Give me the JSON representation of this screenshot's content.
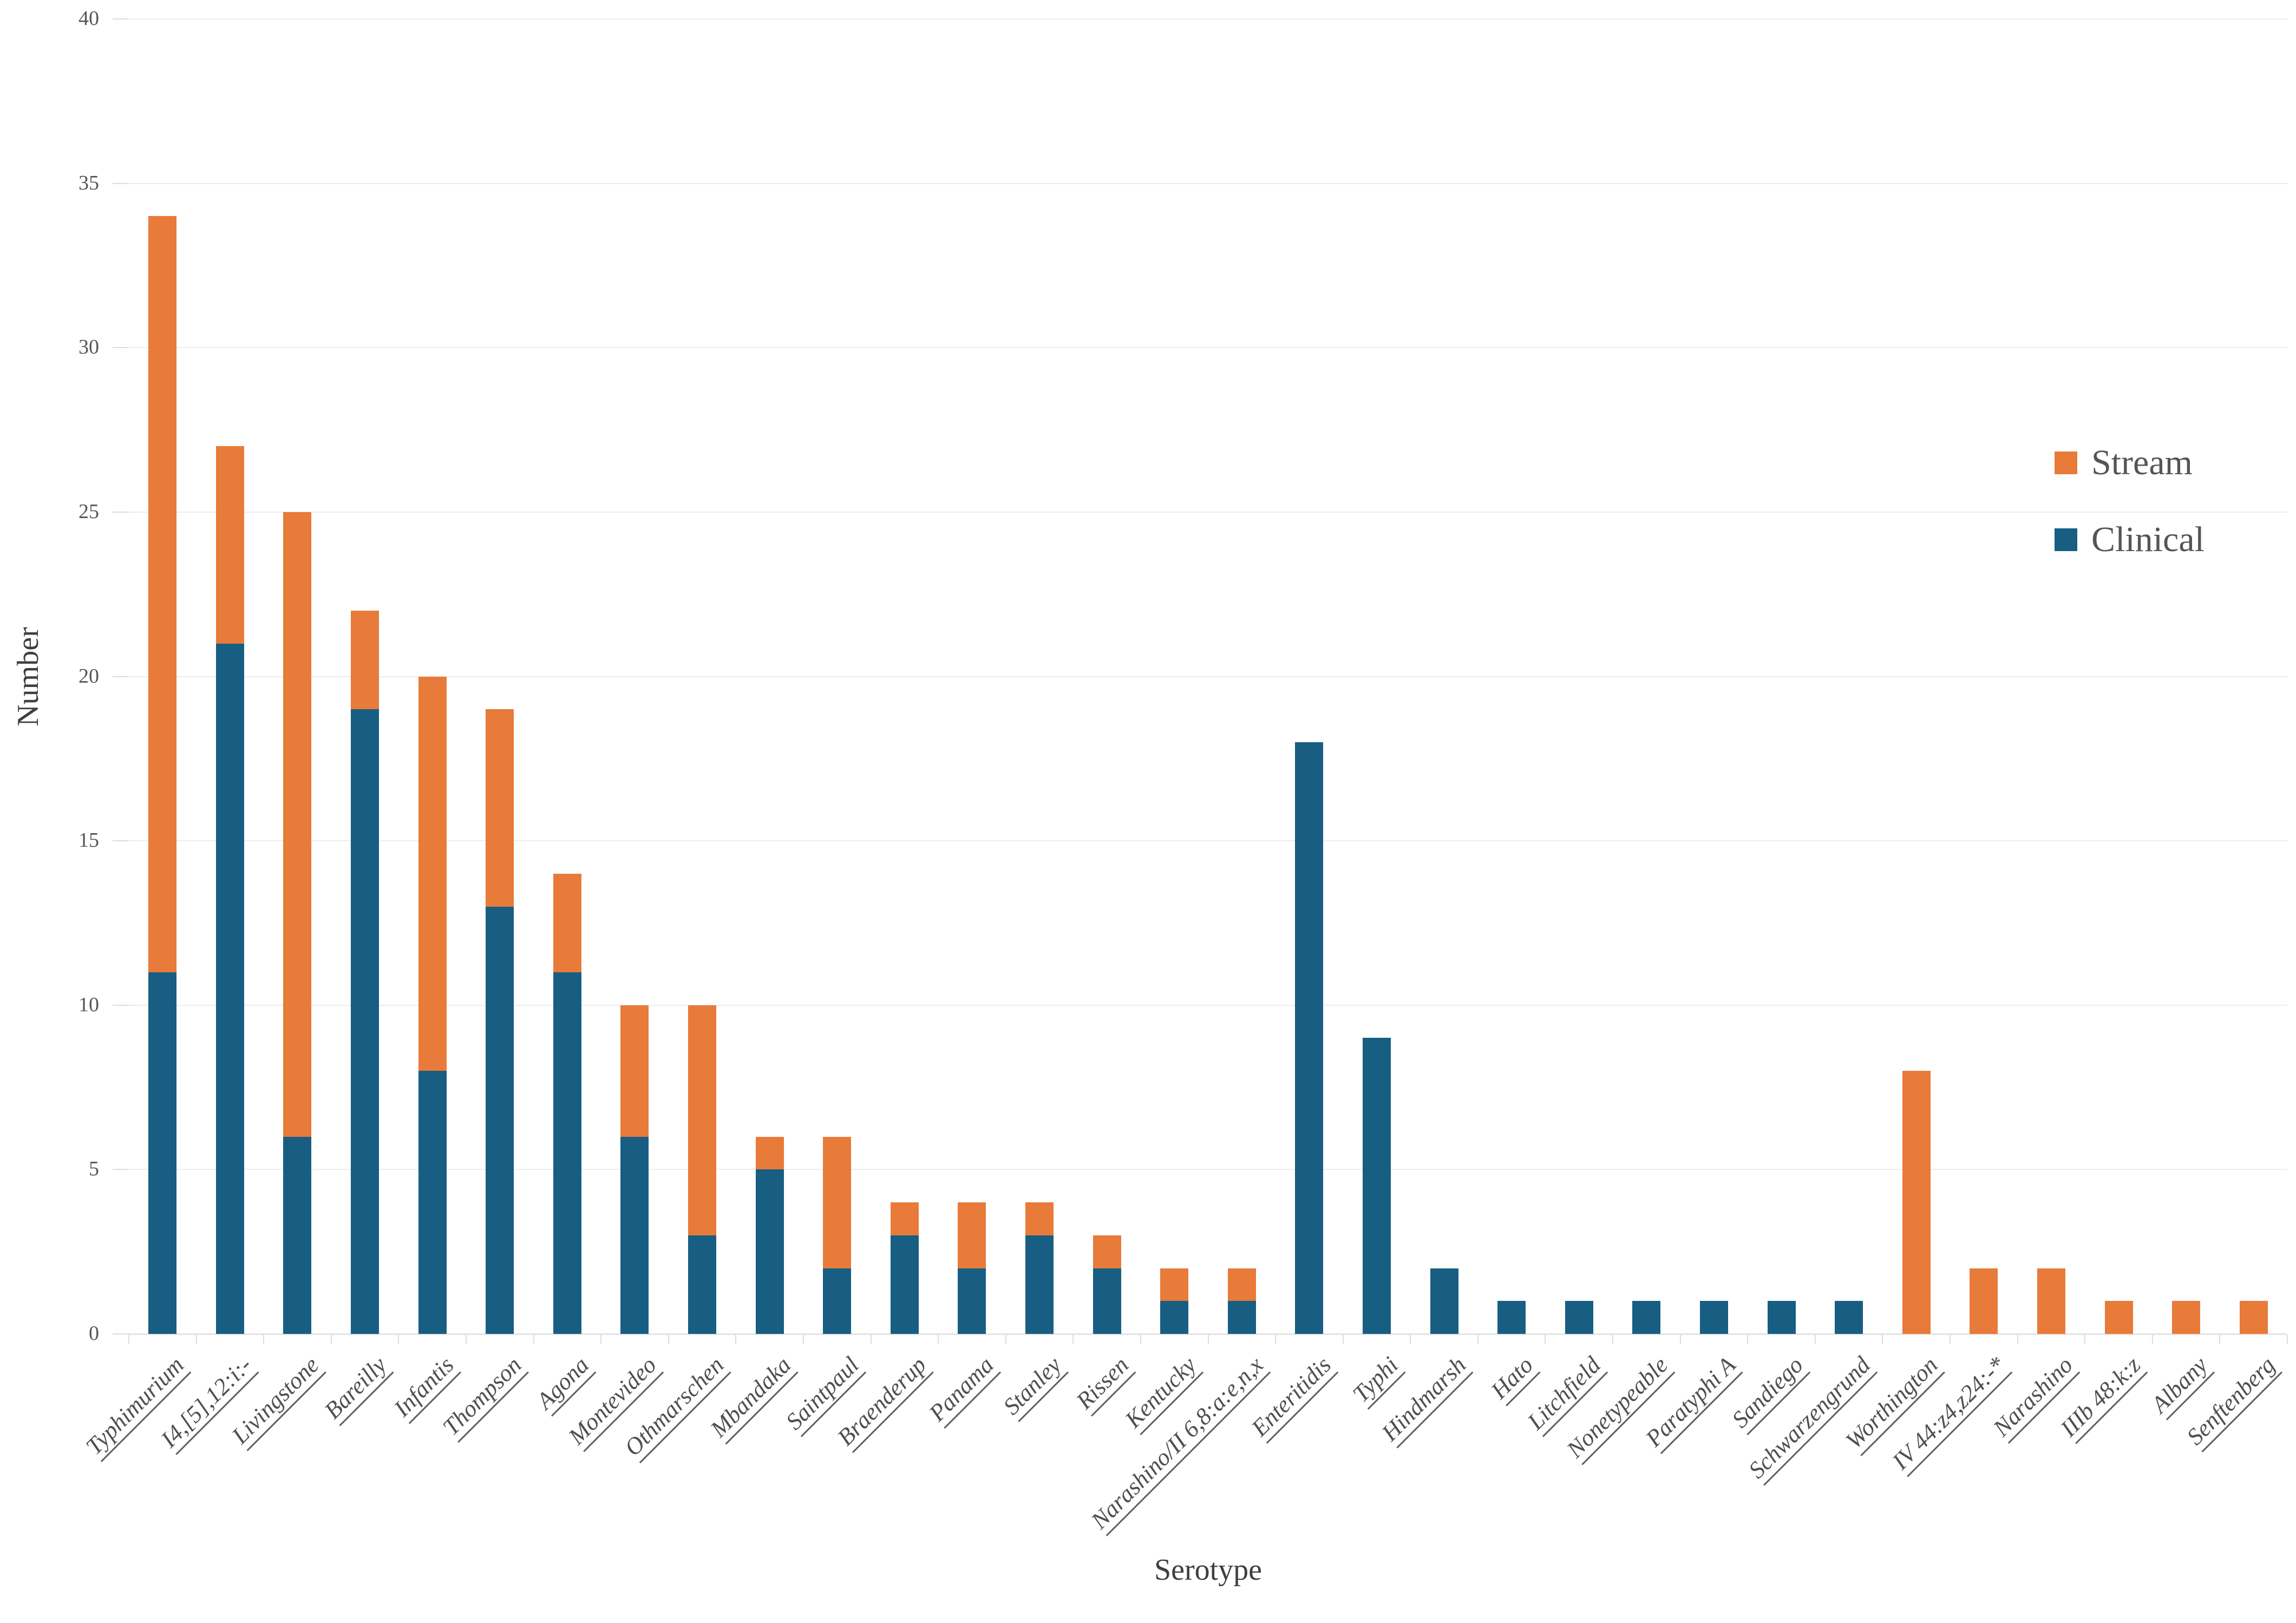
{
  "figure": {
    "background": "#ffffff"
  },
  "styles": {
    "gridline_color": "#EDEDED",
    "axis_line_color": "#E4E4E4",
    "tick_mark_color": "#DCDCDC",
    "tick_label_color": "#575757",
    "category_label_color": "#4F4F4F",
    "axis_title_color": "#3F3F3F",
    "legend_text_color": "#555555"
  },
  "chart_data": {
    "type": "bar",
    "stacked": true,
    "title": "",
    "xlabel": "Serotype",
    "ylabel": "Number",
    "ylim": [
      0,
      40
    ],
    "yticks": [
      0,
      5,
      10,
      15,
      20,
      25,
      30,
      35,
      40
    ],
    "grid": "horizontal",
    "legend_position": "inside-right",
    "legend_order": [
      "Stream",
      "Clinical"
    ],
    "categories": [
      "Typhimurium",
      "I4,[5],12:i:-",
      "Livingstone",
      "Bareilly",
      "Infantis",
      "Thompson",
      "Agona",
      "Montevideo",
      "Othmarschen",
      "Mbandaka",
      "Saintpaul",
      "Braenderup",
      "Panama",
      "Stanley",
      "Rissen",
      "Kentucky",
      "Narashino/II 6,8:a:e,n,x",
      "Enteritidis",
      "Typhi",
      "Hindmarsh",
      "Hato",
      "Litchfield",
      "Nonetypeable",
      "Paratyphi A",
      "Sandiego",
      "Schwarzengrund",
      "Worthington",
      "IV 44:z4,z24:-*",
      "Narashino",
      "IIIb 48:k:z",
      "Albany",
      "Senftenberg"
    ],
    "series": [
      {
        "name": "Clinical",
        "color": "#175E82",
        "values": [
          11,
          21,
          6,
          19,
          8,
          13,
          11,
          6,
          3,
          5,
          2,
          3,
          2,
          3,
          2,
          1,
          1,
          18,
          9,
          2,
          1,
          1,
          1,
          1,
          1,
          1,
          0,
          0,
          0,
          0,
          0,
          0
        ]
      },
      {
        "name": "Stream",
        "color": "#E87A3A",
        "values": [
          23,
          6,
          19,
          3,
          12,
          6,
          3,
          4,
          7,
          1,
          4,
          1,
          2,
          1,
          1,
          1,
          1,
          0,
          0,
          0,
          0,
          0,
          0,
          0,
          0,
          0,
          8,
          2,
          2,
          1,
          1,
          1
        ]
      }
    ]
  }
}
